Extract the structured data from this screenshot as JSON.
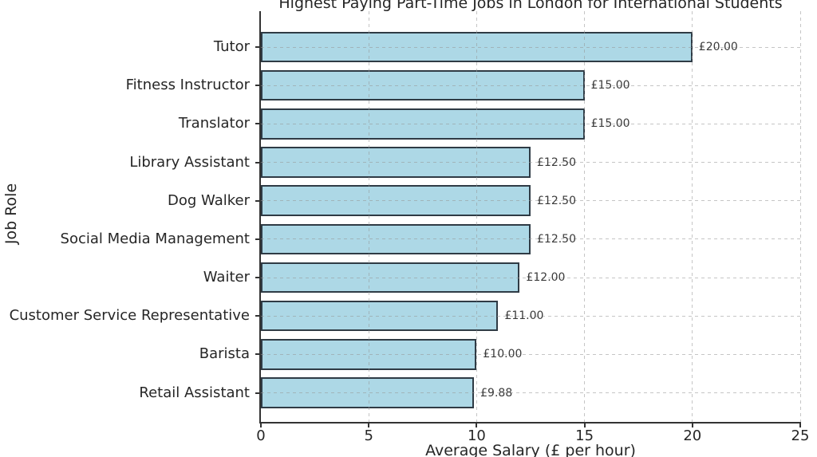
{
  "chart_data": {
    "type": "bar",
    "orientation": "horizontal",
    "title": "Highest Paying Part-Time Jobs in London for International Students",
    "xlabel": "Average Salary (£ per hour)",
    "ylabel": "Job Role",
    "categories": [
      "Tutor",
      "Fitness Instructor",
      "Translator",
      "Library Assistant",
      "Dog Walker",
      "Social Media Management",
      "Waiter",
      "Customer Service Representative",
      "Barista",
      "Retail Assistant"
    ],
    "values": [
      20.0,
      15.0,
      15.0,
      12.5,
      12.5,
      12.5,
      12.0,
      11.0,
      10.0,
      9.88
    ],
    "bar_labels": [
      "£20.00",
      "£15.00",
      "£15.00",
      "£12.50",
      "£12.50",
      "£12.50",
      "£12.00",
      "£11.00",
      "£10.00",
      "£9.88"
    ],
    "x_ticks": [
      "0",
      "5",
      "10",
      "15",
      "20",
      "25"
    ],
    "x_tick_values": [
      0,
      5,
      10,
      15,
      20,
      25
    ],
    "xlim": [
      0,
      25
    ],
    "grid": {
      "style": "dashed",
      "axes": "both"
    },
    "legend_position": "none",
    "colors": {
      "bar_fill": "#ADD8E6",
      "bar_edge": "#2f3b45",
      "axis": "#333333",
      "grid": "#969696",
      "text": "#262626"
    }
  }
}
